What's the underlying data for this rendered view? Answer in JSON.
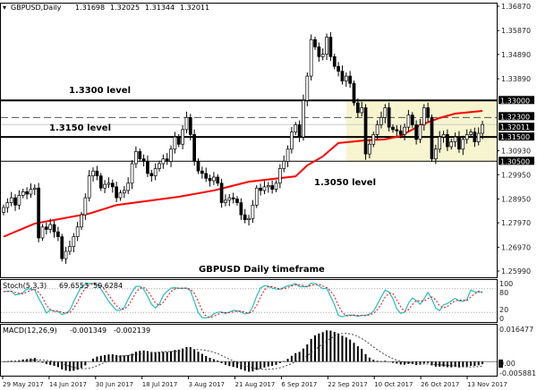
{
  "header": {
    "symbol": "GBPUSD,Daily",
    "open": "1.31698",
    "high": "1.32025",
    "low": "1.31344",
    "close": "1.32011"
  },
  "annotations": {
    "level_1330": "1.3300 level",
    "level_1315": "1.3150 level",
    "level_1305": "1.3050 level",
    "caption": "GBPUSD Daily timeframe"
  },
  "colors": {
    "ma": "#ff0000",
    "stoch_main": "#20c0c0",
    "stoch_signal": "#ff0000",
    "zone": "#f7f5cf",
    "bull": "#ffffff",
    "bear": "#000000"
  },
  "chart_data": {
    "type": "candlestick",
    "title": "GBPUSD Daily timeframe",
    "ylim": [
      1.2599,
      1.3687
    ],
    "price_ticks": [
      "1.36870",
      "1.35870",
      "1.34890",
      "1.33890",
      "1.30930",
      "1.29950",
      "1.28950",
      "1.27970",
      "1.26970",
      "1.25990"
    ],
    "highlighted_ticks": [
      "1.33000",
      "1.32300",
      "1.32011",
      "1.31500",
      "1.30500"
    ],
    "date_labels": [
      "29 May 2017",
      "14 Jun 2017",
      "30 Jun 2017",
      "18 Jul 2017",
      "3 Aug 2017",
      "21 Aug 2017",
      "6 Sep 2017",
      "22 Sep 2017",
      "10 Oct 2017",
      "26 Oct 2017",
      "13 Nov 2017"
    ],
    "first_open": 1.284,
    "close": [
      1.286,
      1.288,
      1.29,
      1.287,
      1.291,
      1.2925,
      1.2915,
      1.2935,
      1.294,
      1.2735,
      1.278,
      1.277,
      1.279,
      1.276,
      1.274,
      1.265,
      1.268,
      1.27,
      1.274,
      1.278,
      1.283,
      1.29,
      1.299,
      1.301,
      1.299,
      1.294,
      1.2955,
      1.296,
      1.2945,
      1.29,
      1.292,
      1.293,
      1.296,
      1.304,
      1.309,
      1.306,
      1.305,
      1.3,
      1.299,
      1.302,
      1.304,
      1.306,
      1.305,
      1.31,
      1.315,
      1.312,
      1.318,
      1.323,
      1.316,
      1.305,
      1.301,
      1.3,
      1.298,
      1.297,
      1.2985,
      1.296,
      1.288,
      1.289,
      1.29,
      1.2895,
      1.288,
      1.283,
      1.281,
      1.2815,
      1.287,
      1.294,
      1.293,
      1.2945,
      1.295,
      1.2935,
      1.296,
      1.302,
      1.305,
      1.31,
      1.317,
      1.32,
      1.315,
      1.33,
      1.34,
      1.355,
      1.352,
      1.348,
      1.349,
      1.356,
      1.348,
      1.344,
      1.342,
      1.338,
      1.34,
      1.337,
      1.329,
      1.325,
      1.327,
      1.308,
      1.312,
      1.316,
      1.32,
      1.323,
      1.327,
      1.319,
      1.318,
      1.3175,
      1.316,
      1.319,
      1.324,
      1.32,
      1.314,
      1.32,
      1.327,
      1.323,
      1.306,
      1.31,
      1.315,
      1.316,
      1.311,
      1.313,
      1.315,
      1.31,
      1.314,
      1.316,
      1.317,
      1.313,
      1.3165,
      1.3201
    ],
    "moving_average": [
      [
        0,
        1.274
      ],
      [
        8,
        1.2794
      ],
      [
        22,
        1.2835
      ],
      [
        29,
        1.287
      ],
      [
        45,
        1.2904
      ],
      [
        54,
        1.293
      ],
      [
        63,
        1.2966
      ],
      [
        75,
        1.2988
      ],
      [
        78,
        1.3033
      ],
      [
        82,
        1.307
      ],
      [
        86,
        1.3125
      ],
      [
        93,
        1.3136
      ],
      [
        98,
        1.314
      ],
      [
        102,
        1.3154
      ],
      [
        107,
        1.3198
      ],
      [
        112,
        1.3228
      ],
      [
        116,
        1.3246
      ],
      [
        123,
        1.3257
      ]
    ],
    "levels": [
      {
        "price": 1.33,
        "style": "solid-thick"
      },
      {
        "price": 1.323,
        "style": "dashed"
      },
      {
        "price": 1.32011,
        "style": "current"
      },
      {
        "price": 1.315,
        "style": "solid-thick"
      },
      {
        "price": 1.305,
        "style": "solid"
      }
    ],
    "zone": {
      "from_index": 88,
      "top": 1.33,
      "bottom": 1.305
    },
    "stochastic": {
      "label": "Stoch(5,3,3)",
      "main": "69.6553",
      "signal": "59.6284",
      "ticks": [
        "100",
        "80",
        "20",
        "0"
      ],
      "levels": [
        80,
        20
      ]
    },
    "macd": {
      "label": "MACD(12,26,9)",
      "main": "-0.001349",
      "signal": "-0.002139",
      "ylim": [
        -0.005881,
        0.016477
      ],
      "ticks": [
        "0.016477",
        "0.00",
        "-0.005881"
      ]
    }
  }
}
